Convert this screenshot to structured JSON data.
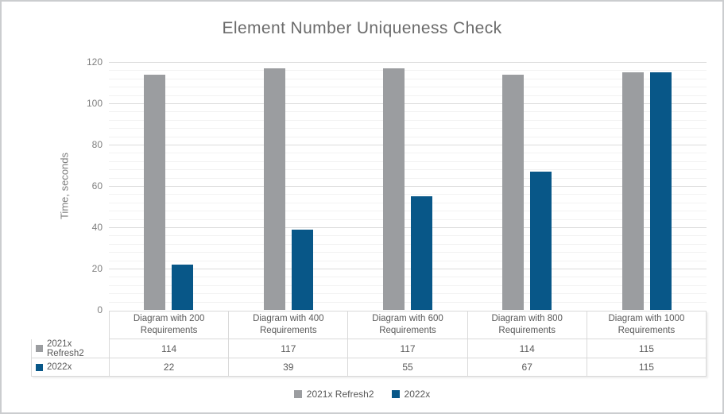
{
  "title": "Element Number Uniqueness Check",
  "y_axis": {
    "label": "Time, seconds",
    "ticks": [
      0,
      20,
      40,
      60,
      80,
      100,
      120
    ]
  },
  "chart_data": {
    "type": "bar",
    "title": "Element Number Uniqueness Check",
    "categories": [
      "Diagram with 200 Requirements",
      "Diagram with 400 Requirements",
      "Diagram with 600 Requirements",
      "Diagram with 800 Requirements",
      "Diagram with 1000 Requirements"
    ],
    "series": [
      {
        "name": "2021x Refresh2",
        "color": "#9b9da0",
        "values": [
          114,
          117,
          117,
          114,
          115
        ]
      },
      {
        "name": "2022x",
        "color": "#085788",
        "values": [
          22,
          39,
          55,
          67,
          115
        ]
      }
    ],
    "xlabel": "",
    "ylabel": "Time, seconds",
    "ylim": [
      0,
      120
    ],
    "gridlines": {
      "major_step": 20,
      "minor_step": 4,
      "grid": "on"
    },
    "legend_position": "bottom",
    "data_table_shown": true
  }
}
